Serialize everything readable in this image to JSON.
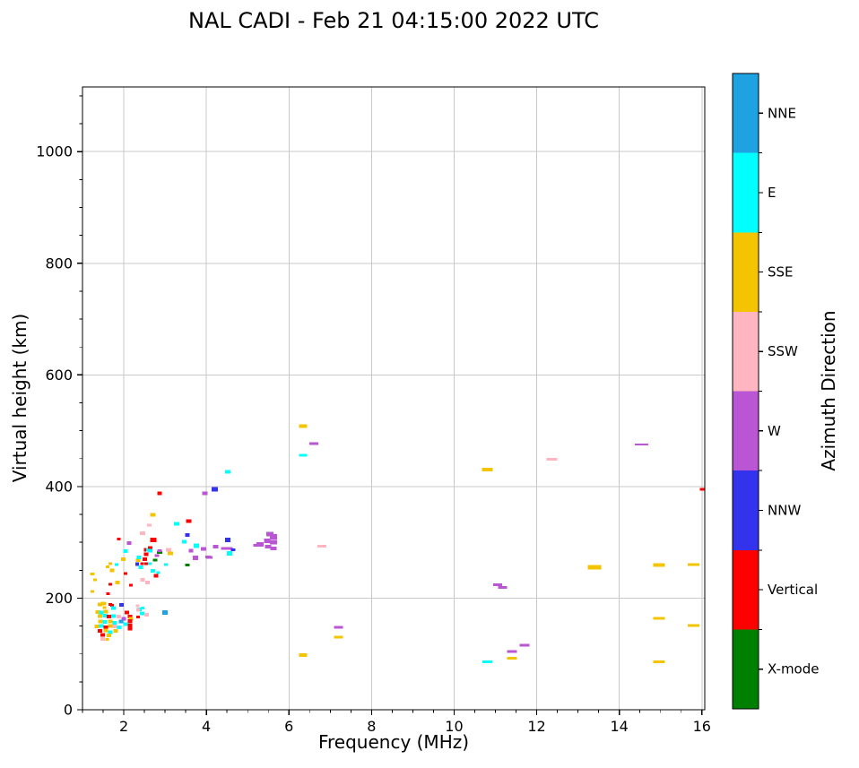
{
  "figure": {
    "title": "NAL CADI - Feb 21 04:15:00 2022 UTC"
  },
  "chart_data": {
    "type": "scatter",
    "title": "NAL CADI - Feb 21 04:15:00 2022 UTC",
    "xlabel": "Frequency (MHz)",
    "ylabel": "Virtual height (km)",
    "xlim": [
      1.0,
      16.07
    ],
    "ylim": [
      0,
      1116
    ],
    "x_major_ticks": [
      2,
      4,
      6,
      8,
      10,
      12,
      14,
      16
    ],
    "x_minor_step": 0.5,
    "y_major_ticks": [
      0,
      200,
      400,
      600,
      800,
      1000
    ],
    "y_minor_step": 50,
    "grid": true,
    "grid_color": "#c9c9c9",
    "spine_color": "#000000",
    "legend_position": "right-colorbar",
    "colorbar": {
      "label": "Azimuth Direction",
      "order": "top-to-bottom",
      "categories": [
        {
          "label": "NNE",
          "color": "#1ea2e2"
        },
        {
          "label": "E",
          "color": "#00ffff"
        },
        {
          "label": "SSE",
          "color": "#f5c400"
        },
        {
          "label": "SSW",
          "color": "#ffb6c1"
        },
        {
          "label": "W",
          "color": "#ba55d3"
        },
        {
          "label": "NNW",
          "color": "#3333ee"
        },
        {
          "label": "Vertical",
          "color": "#ff0000"
        },
        {
          "label": "X-mode",
          "color": "#008000"
        }
      ]
    },
    "points_format": [
      "frequency_MHz",
      "virtual_height_km",
      "category_index",
      "marker_width_px",
      "marker_height_px"
    ],
    "points": [
      [
        1.24,
        243,
        2,
        5,
        3
      ],
      [
        1.3,
        233,
        2,
        4,
        3
      ],
      [
        1.24,
        212,
        2,
        4,
        3
      ],
      [
        1.67,
        225,
        6,
        4,
        3
      ],
      [
        1.85,
        228,
        2,
        5,
        4
      ],
      [
        2.17,
        223,
        6,
        4,
        3
      ],
      [
        2.57,
        228,
        3,
        5,
        4
      ],
      [
        1.62,
        208,
        6,
        4,
        3
      ],
      [
        1.5,
        190,
        2,
        5,
        4
      ],
      [
        1.72,
        187,
        6,
        4,
        3
      ],
      [
        1.95,
        188,
        5,
        5,
        4
      ],
      [
        2.34,
        186,
        3,
        4,
        3
      ],
      [
        2.38,
        180,
        1,
        5,
        4
      ],
      [
        2.46,
        182,
        1,
        4,
        3
      ],
      [
        2.35,
        179,
        3,
        4,
        4
      ],
      [
        2.35,
        166,
        6,
        4,
        3
      ],
      [
        3.0,
        174,
        0,
        6,
        5
      ],
      [
        2.44,
        173,
        1,
        5,
        4
      ],
      [
        2.55,
        170,
        3,
        5,
        4
      ],
      [
        1.42,
        189,
        2,
        5,
        4
      ],
      [
        1.53,
        190,
        2,
        4,
        3
      ],
      [
        1.67,
        189,
        6,
        4,
        3
      ],
      [
        1.75,
        182,
        1,
        5,
        4
      ],
      [
        1.53,
        183,
        2,
        4,
        3
      ],
      [
        1.37,
        175,
        2,
        5,
        4
      ],
      [
        1.46,
        174,
        1,
        5,
        4
      ],
      [
        1.57,
        176,
        2,
        5,
        4
      ],
      [
        2.07,
        174,
        6,
        5,
        4
      ],
      [
        2.15,
        167,
        6,
        5,
        4
      ],
      [
        2.17,
        163,
        2,
        5,
        4
      ],
      [
        1.42,
        168,
        2,
        5,
        4
      ],
      [
        1.54,
        169,
        1,
        5,
        4
      ],
      [
        1.64,
        167,
        6,
        5,
        4
      ],
      [
        1.75,
        168,
        1,
        5,
        4
      ],
      [
        1.88,
        167,
        3,
        5,
        4
      ],
      [
        2.0,
        163,
        4,
        5,
        4
      ],
      [
        2.15,
        159,
        6,
        5,
        4
      ],
      [
        1.43,
        158,
        2,
        5,
        4
      ],
      [
        1.54,
        157,
        1,
        5,
        4
      ],
      [
        1.67,
        158,
        2,
        5,
        4
      ],
      [
        1.78,
        156,
        1,
        5,
        4
      ],
      [
        1.93,
        158,
        0,
        5,
        4
      ],
      [
        2.04,
        153,
        1,
        5,
        4
      ],
      [
        2.15,
        152,
        6,
        5,
        4
      ],
      [
        1.35,
        149,
        2,
        5,
        4
      ],
      [
        1.46,
        150,
        1,
        5,
        4
      ],
      [
        1.57,
        148,
        6,
        5,
        4
      ],
      [
        1.67,
        150,
        2,
        5,
        4
      ],
      [
        1.78,
        149,
        3,
        5,
        4
      ],
      [
        1.89,
        148,
        1,
        5,
        4
      ],
      [
        2.15,
        145,
        6,
        5,
        4
      ],
      [
        1.42,
        141,
        6,
        5,
        4
      ],
      [
        1.57,
        142,
        2,
        5,
        4
      ],
      [
        1.67,
        139,
        1,
        5,
        4
      ],
      [
        1.8,
        141,
        2,
        5,
        4
      ],
      [
        1.49,
        134,
        6,
        5,
        4
      ],
      [
        1.64,
        133,
        2,
        5,
        4
      ],
      [
        1.49,
        127,
        3,
        5,
        4
      ],
      [
        1.6,
        126,
        2,
        4,
        3
      ],
      [
        1.61,
        256,
        2,
        4,
        3
      ],
      [
        1.67,
        262,
        2,
        4,
        3
      ],
      [
        1.72,
        250,
        2,
        5,
        4
      ],
      [
        1.83,
        260,
        1,
        4,
        3
      ],
      [
        1.99,
        270,
        2,
        5,
        4
      ],
      [
        2.04,
        284,
        1,
        5,
        4
      ],
      [
        2.04,
        244,
        6,
        4,
        3
      ],
      [
        2.13,
        299,
        4,
        5,
        4
      ],
      [
        2.32,
        261,
        5,
        4,
        4
      ],
      [
        2.35,
        268,
        2,
        5,
        4
      ],
      [
        2.38,
        272,
        3,
        4,
        3
      ],
      [
        2.41,
        255,
        1,
        5,
        4
      ],
      [
        2.44,
        262,
        6,
        4,
        3
      ],
      [
        2.54,
        262,
        6,
        4,
        3
      ],
      [
        2.63,
        262,
        1,
        4,
        3
      ],
      [
        2.46,
        233,
        3,
        5,
        4
      ],
      [
        2.78,
        240,
        6,
        5,
        4
      ],
      [
        2.7,
        249,
        1,
        5,
        4
      ],
      [
        2.84,
        246,
        1,
        4,
        3
      ],
      [
        3.02,
        260,
        1,
        4,
        3
      ],
      [
        2.37,
        273,
        1,
        5,
        4
      ],
      [
        2.51,
        270,
        6,
        5,
        4
      ],
      [
        2.54,
        279,
        6,
        5,
        4
      ],
      [
        2.54,
        287,
        6,
        5,
        4
      ],
      [
        2.6,
        287,
        1,
        5,
        4
      ],
      [
        2.64,
        290,
        6,
        5,
        4
      ],
      [
        2.64,
        285,
        1,
        5,
        4
      ],
      [
        2.72,
        304,
        6,
        7,
        5
      ],
      [
        2.76,
        268,
        7,
        5,
        3
      ],
      [
        2.87,
        282,
        7,
        6,
        3
      ],
      [
        2.8,
        276,
        4,
        5,
        3
      ],
      [
        2.87,
        285,
        4,
        5,
        3
      ],
      [
        3.09,
        287,
        3,
        6,
        4
      ],
      [
        3.13,
        280,
        2,
        6,
        4
      ],
      [
        3.28,
        333,
        1,
        6,
        4
      ],
      [
        3.57,
        338,
        6,
        6,
        4
      ],
      [
        2.87,
        388,
        6,
        5,
        4
      ],
      [
        2.7,
        349,
        2,
        6,
        4
      ],
      [
        2.62,
        331,
        3,
        5,
        3
      ],
      [
        2.45,
        316,
        3,
        6,
        4
      ],
      [
        1.88,
        306,
        6,
        4,
        3
      ],
      [
        3.54,
        313,
        5,
        5,
        4
      ],
      [
        3.46,
        301,
        1,
        5,
        4
      ],
      [
        3.76,
        294,
        1,
        6,
        5
      ],
      [
        3.63,
        285,
        4,
        5,
        4
      ],
      [
        3.74,
        272,
        4,
        6,
        5
      ],
      [
        3.54,
        259,
        7,
        5,
        3
      ],
      [
        4.07,
        273,
        4,
        7,
        3
      ],
      [
        3.93,
        288,
        4,
        6,
        4
      ],
      [
        4.04,
        274,
        4,
        6,
        3
      ],
      [
        4.22,
        292,
        4,
        6,
        4
      ],
      [
        4.52,
        304,
        5,
        6,
        5
      ],
      [
        4.5,
        289,
        4,
        13,
        3
      ],
      [
        4.65,
        287,
        5,
        5,
        3
      ],
      [
        4.56,
        280,
        1,
        6,
        5
      ],
      [
        5.2,
        295,
        4,
        6,
        3
      ],
      [
        5.3,
        296,
        4,
        8,
        5
      ],
      [
        5.47,
        303,
        4,
        7,
        5
      ],
      [
        5.54,
        315,
        4,
        8,
        5
      ],
      [
        5.63,
        310,
        4,
        8,
        6
      ],
      [
        5.63,
        300,
        4,
        8,
        5
      ],
      [
        5.5,
        292,
        4,
        7,
        4
      ],
      [
        5.63,
        289,
        4,
        7,
        4
      ],
      [
        3.96,
        388,
        4,
        6,
        4
      ],
      [
        4.2,
        395,
        5,
        7,
        5
      ],
      [
        4.52,
        426,
        1,
        6,
        4
      ],
      [
        6.34,
        508,
        2,
        9,
        4
      ],
      [
        6.6,
        477,
        4,
        10,
        3
      ],
      [
        6.34,
        456,
        1,
        9,
        3
      ],
      [
        6.8,
        293,
        3,
        10,
        3
      ],
      [
        7.2,
        148,
        4,
        10,
        3
      ],
      [
        7.2,
        130,
        2,
        10,
        3
      ],
      [
        6.34,
        98,
        2,
        9,
        4
      ],
      [
        10.8,
        430,
        2,
        12,
        4
      ],
      [
        12.37,
        449,
        3,
        12,
        3
      ],
      [
        11.05,
        224,
        4,
        10,
        3
      ],
      [
        11.17,
        219,
        4,
        10,
        3
      ],
      [
        11.7,
        116,
        4,
        11,
        3
      ],
      [
        11.4,
        104,
        4,
        11,
        3
      ],
      [
        11.4,
        92,
        2,
        11,
        3
      ],
      [
        10.8,
        86,
        1,
        11,
        3
      ],
      [
        14.54,
        475,
        4,
        15,
        2
      ],
      [
        16.02,
        395,
        6,
        6,
        3
      ],
      [
        13.4,
        255,
        2,
        15,
        5
      ],
      [
        14.96,
        259,
        2,
        13,
        4
      ],
      [
        15.8,
        260,
        2,
        13,
        3
      ],
      [
        14.96,
        164,
        2,
        13,
        3
      ],
      [
        15.8,
        151,
        2,
        13,
        3
      ],
      [
        14.96,
        86,
        2,
        13,
        3
      ]
    ]
  }
}
